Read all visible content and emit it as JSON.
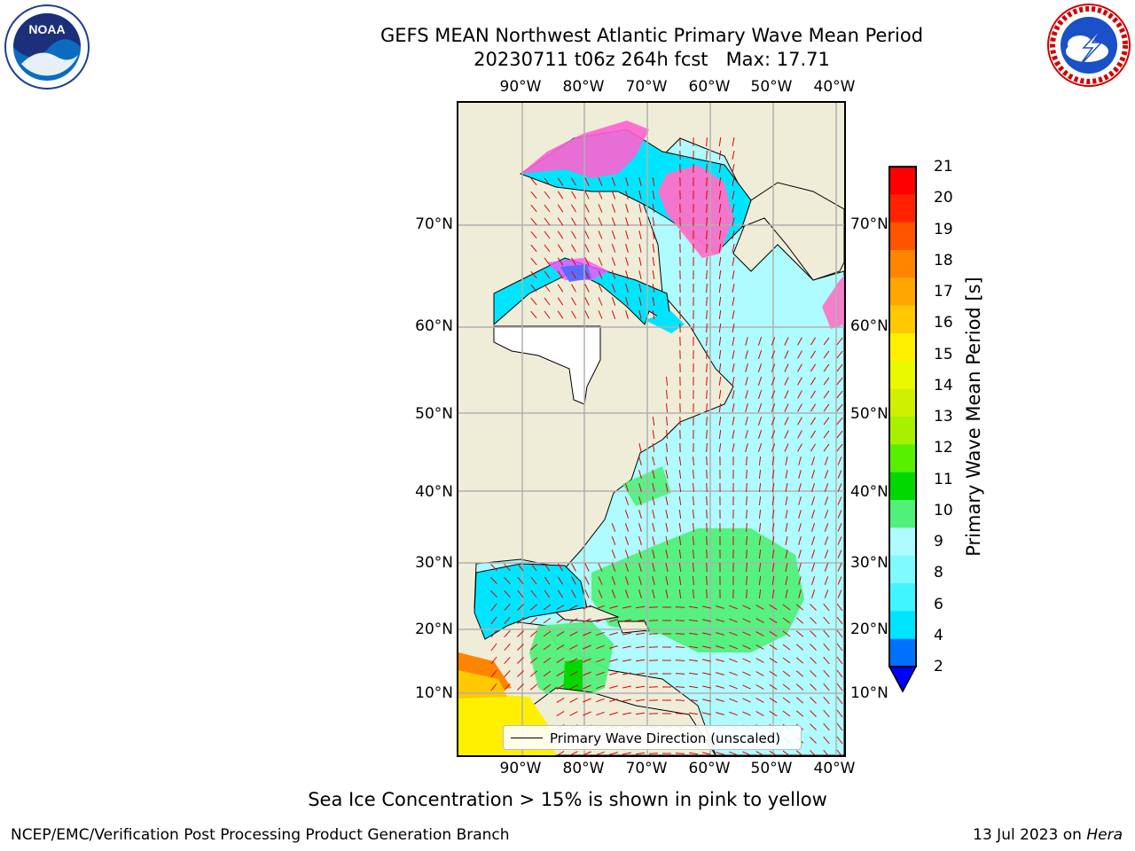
{
  "title": {
    "line1": "GEFS MEAN Northwest Atlantic Primary Wave Mean Period",
    "line2": "20230711 t06z 264h fcst   Max: 17.71"
  },
  "map": {
    "lon_ticks_top": [
      "90°W",
      "80°W",
      "70°W",
      "60°W",
      "50°W",
      "40°W"
    ],
    "lon_ticks_bottom": [
      "90°W",
      "80°W",
      "70°W",
      "60°W",
      "50°W",
      "40°W"
    ],
    "lat_ticks_left": [
      "70°N",
      "60°N",
      "50°N",
      "40°N",
      "30°N",
      "20°N",
      "10°N"
    ],
    "lat_ticks_right": [
      "70°N",
      "60°N",
      "50°N",
      "40°N",
      "30°N",
      "20°N",
      "10°N"
    ],
    "colors": {
      "land": "#efedd8",
      "grid": "#b0b0b0",
      "arrow": "#e00000"
    }
  },
  "legend": {
    "label": "Primary Wave Direction (unscaled)"
  },
  "colorbar": {
    "label": "Primary Wave Mean Period [s]",
    "ticks": [
      "2",
      "4",
      "6",
      "8",
      "9",
      "10",
      "11",
      "12",
      "13",
      "14",
      "15",
      "16",
      "17",
      "18",
      "19",
      "20",
      "21"
    ],
    "bands": [
      "#0070ff",
      "#00e5ff",
      "#40f5ff",
      "#7ffaff",
      "#aefcff",
      "#50f07a",
      "#00d800",
      "#56f000",
      "#a6f000",
      "#cff000",
      "#e8f900",
      "#fff000",
      "#ffc800",
      "#ffa600",
      "#ff8400",
      "#ff5400",
      "#ff2200",
      "#ff0000"
    ],
    "under_color": "#0000ff"
  },
  "footnote": "Sea Ice Concentration > 15% is shown in pink to yellow",
  "credit_left": "NCEP/EMC/Verification Post Processing Product Generation Branch",
  "credit_right_date": "13 Jul 2023 on",
  "credit_right_host": "Hera"
}
